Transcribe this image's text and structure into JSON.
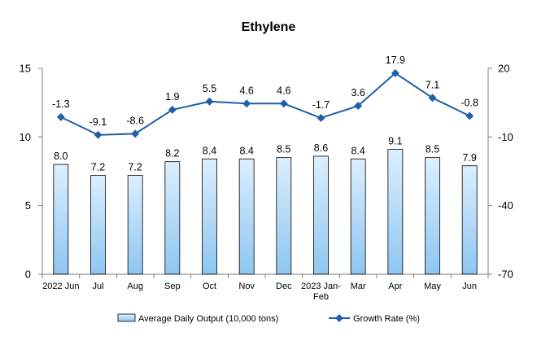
{
  "chart_data": {
    "type": "bar",
    "title": "Ethylene",
    "categories": [
      "2022 Jun",
      "Jul",
      "Aug",
      "Sep",
      "Oct",
      "Nov",
      "Dec",
      "2023 Jan-Feb",
      "Mar",
      "Apr",
      "May",
      "Jun"
    ],
    "series": [
      {
        "name": "Average Daily Output (10,000 tons)",
        "type": "bar",
        "axis": "left",
        "values": [
          8.0,
          7.2,
          7.2,
          8.2,
          8.4,
          8.4,
          8.5,
          8.6,
          8.4,
          9.1,
          8.5,
          7.9
        ],
        "labels": [
          "8.0",
          "7.2",
          "7.2",
          "8.2",
          "8.4",
          "8.4",
          "8.5",
          "8.6",
          "8.4",
          "9.1",
          "8.5",
          "7.9"
        ]
      },
      {
        "name": "Growth Rate (%)",
        "type": "line",
        "axis": "right",
        "values": [
          -1.3,
          -9.1,
          -8.6,
          1.9,
          5.5,
          4.6,
          4.6,
          -1.7,
          3.6,
          17.9,
          7.1,
          -0.8
        ],
        "labels": [
          "-1.3",
          "-9.1",
          "-8.6",
          "1.9",
          "5.5",
          "4.6",
          "4.6",
          "-1.7",
          "3.6",
          "17.9",
          "7.1",
          "-0.8"
        ]
      }
    ],
    "y_left": {
      "min": 0,
      "max": 15,
      "ticks": [
        0,
        5,
        10,
        15
      ],
      "tick_labels": [
        "0",
        "5",
        "10",
        "15"
      ]
    },
    "y_right": {
      "min": -70,
      "max": 20,
      "ticks": [
        -70,
        -40,
        -10,
        20
      ],
      "tick_labels": [
        "-70",
        "-40",
        "-10",
        "20"
      ]
    },
    "grid": false,
    "legend_position": "bottom",
    "colors": {
      "bar_fill_top": "#dcefff",
      "bar_fill_bottom": "#8ec6f0",
      "bar_stroke": "#000000",
      "line": "#1f5fa8",
      "marker": "#1f5fa8",
      "axis": "#7f7f7f"
    }
  }
}
